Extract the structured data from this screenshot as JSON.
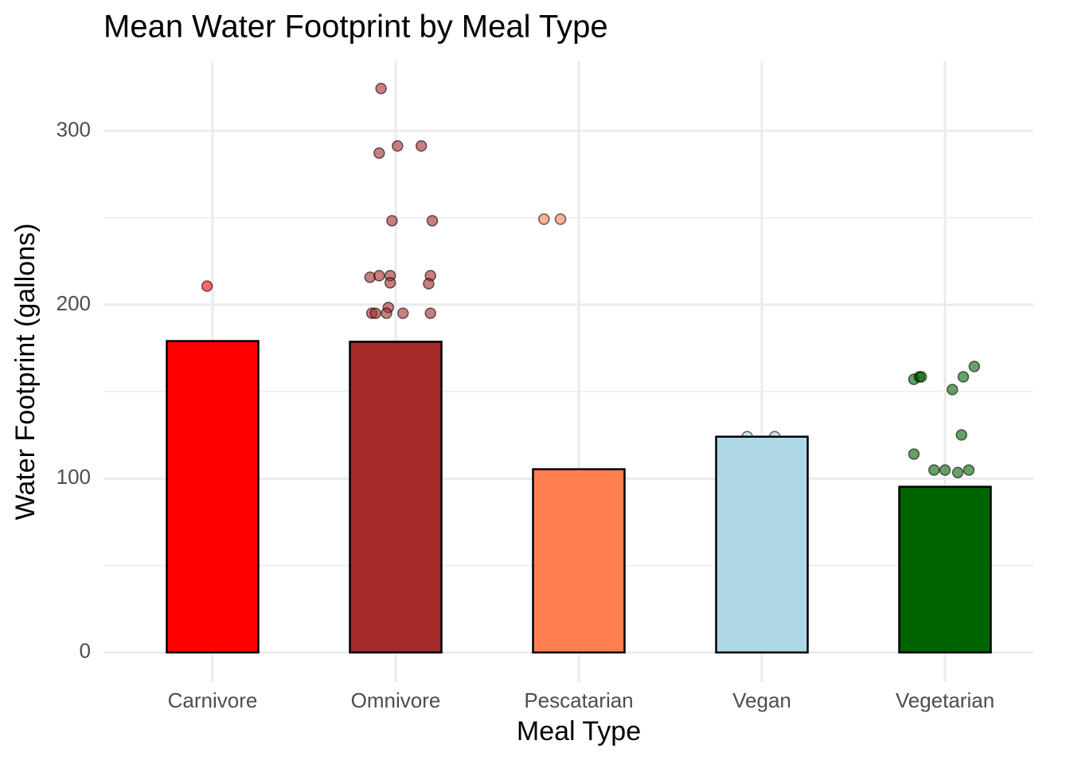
{
  "chart_data": {
    "type": "bar",
    "title": "Mean Water Footprint by Meal Type",
    "x_label": "Meal Type",
    "y_label": "Water Footprint (gallons)",
    "categories": [
      "Carnivore",
      "Omnivore",
      "Pescatarian",
      "Vegan",
      "Vegetarian"
    ],
    "values": [
      179.1,
      178.7,
      105.4,
      124.1,
      95.3
    ],
    "colors": [
      "#ff0000",
      "#a52a2a",
      "#ff7f50",
      "#add8e6",
      "#006400"
    ],
    "ylim": [
      -17,
      340
    ],
    "yticks": [
      0,
      100,
      200,
      300
    ],
    "minor_yticks": [
      50,
      150,
      250
    ],
    "grid": true,
    "points": [
      {
        "x": [
          0.97
        ],
        "y": [
          210.7
        ]
      },
      {
        "x": [
          1.92,
          1.91,
          2.01,
          2.14,
          1.98,
          2.2,
          1.86,
          1.91,
          1.97,
          2.19,
          1.97,
          2.18,
          1.96,
          1.87,
          1.89,
          1.95,
          2.04,
          2.19
        ],
        "y": [
          324.3,
          287.2,
          291.3,
          291.3,
          248.3,
          248.3,
          215.8,
          216.7,
          216.7,
          216.7,
          212.6,
          212.1,
          198.4,
          195.1,
          195.1,
          195.1,
          195.1,
          195.1
        ]
      },
      {
        "x": [
          2.81,
          2.9
        ],
        "y": [
          249.2,
          249.2
        ]
      },
      {
        "x": [
          3.92,
          4.07
        ],
        "y": [
          124.1,
          124.1
        ]
      },
      {
        "x": [
          4.83,
          4.86,
          4.87,
          5.1,
          5.16,
          5.04,
          5.09,
          4.83,
          4.94,
          5.0,
          5.07,
          5.13
        ],
        "y": [
          157.1,
          158.5,
          158.5,
          158.5,
          164.5,
          151.2,
          125.1,
          114.1,
          104.9,
          104.9,
          103.5,
          104.9
        ]
      }
    ]
  }
}
